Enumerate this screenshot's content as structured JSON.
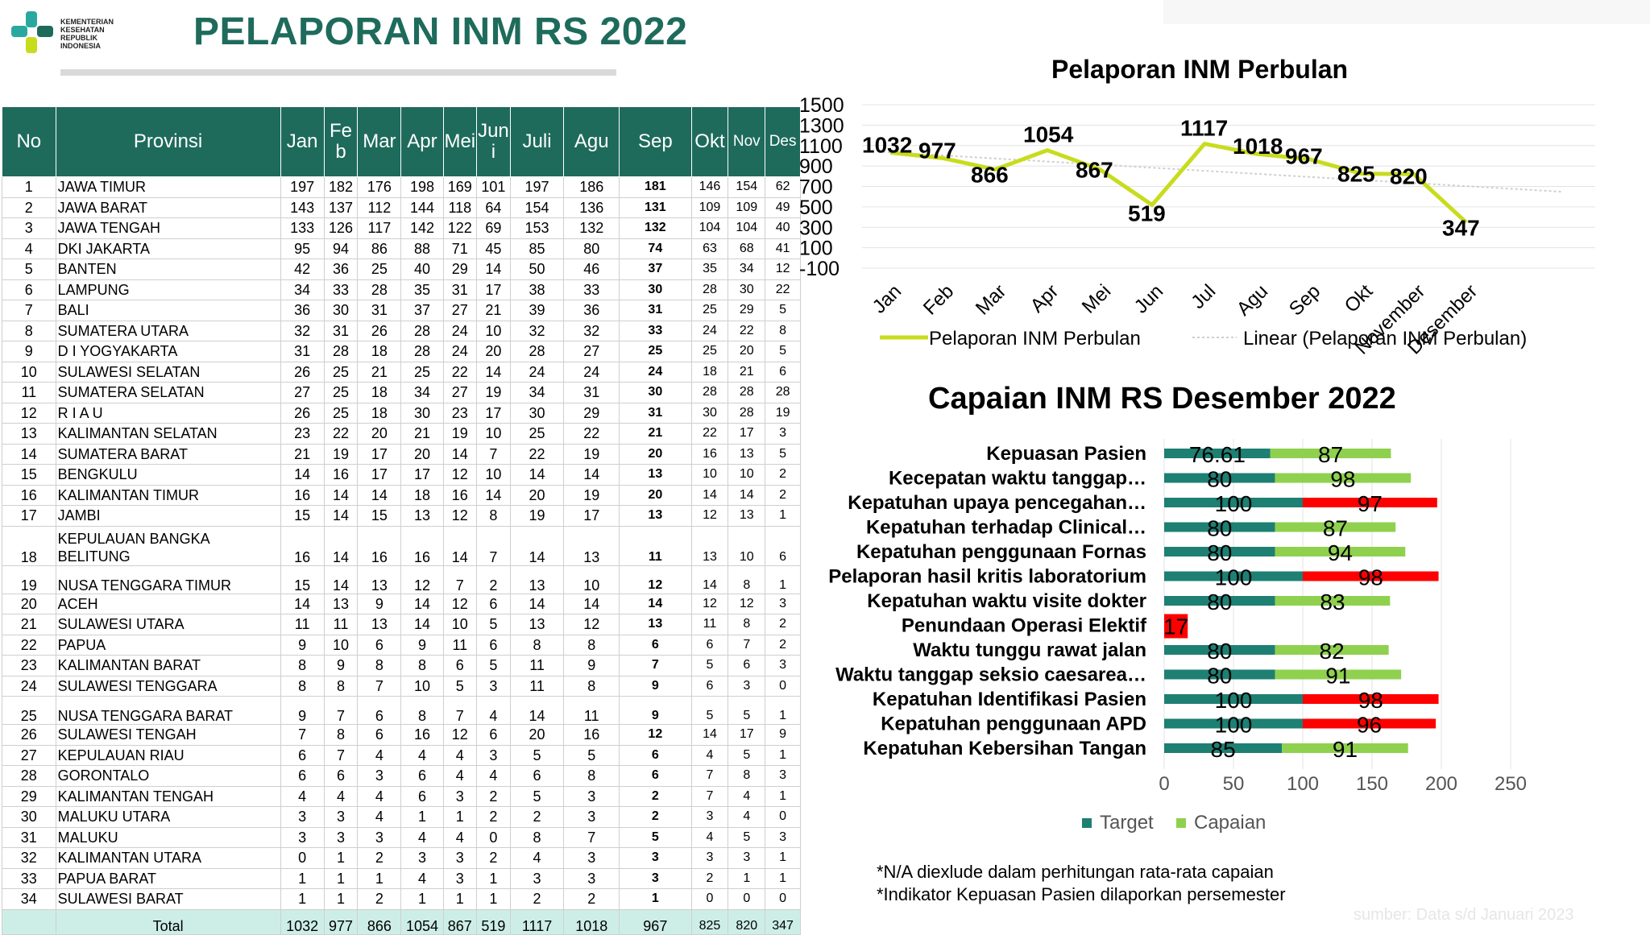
{
  "header": {
    "logo_text": "KEMENTERIAN\nKESEHATAN\nREPUBLIK\nINDONESIA",
    "title": "PELAPORAN INM RS 2022"
  },
  "table": {
    "columns": [
      "No",
      "Provinsi",
      "Jan",
      "Fe b",
      "Mar",
      "Apr",
      "Mei",
      "Jun i",
      "Juli",
      "Agu",
      "Sep",
      "Okt",
      "Nov",
      "Des"
    ],
    "rows": [
      [
        "1",
        "JAWA TIMUR",
        "197",
        "182",
        "176",
        "198",
        "169",
        "101",
        "197",
        "186",
        "181",
        "146",
        "154",
        "62"
      ],
      [
        "2",
        "JAWA BARAT",
        "143",
        "137",
        "112",
        "144",
        "118",
        "64",
        "154",
        "136",
        "131",
        "109",
        "109",
        "49"
      ],
      [
        "3",
        "JAWA TENGAH",
        "133",
        "126",
        "117",
        "142",
        "122",
        "69",
        "153",
        "132",
        "132",
        "104",
        "104",
        "40"
      ],
      [
        "4",
        "DKI JAKARTA",
        "95",
        "94",
        "86",
        "88",
        "71",
        "45",
        "85",
        "80",
        "74",
        "63",
        "68",
        "41"
      ],
      [
        "5",
        "BANTEN",
        "42",
        "36",
        "25",
        "40",
        "29",
        "14",
        "50",
        "46",
        "37",
        "35",
        "34",
        "12"
      ],
      [
        "6",
        "LAMPUNG",
        "34",
        "33",
        "28",
        "35",
        "31",
        "17",
        "38",
        "33",
        "30",
        "28",
        "30",
        "22"
      ],
      [
        "7",
        "BALI",
        "36",
        "30",
        "31",
        "37",
        "27",
        "21",
        "39",
        "36",
        "31",
        "25",
        "29",
        "5"
      ],
      [
        "8",
        "SUMATERA UTARA",
        "32",
        "31",
        "26",
        "28",
        "24",
        "10",
        "32",
        "32",
        "33",
        "24",
        "22",
        "8"
      ],
      [
        "9",
        "D I YOGYAKARTA",
        "31",
        "28",
        "18",
        "28",
        "24",
        "20",
        "28",
        "27",
        "25",
        "25",
        "20",
        "5"
      ],
      [
        "10",
        "SULAWESI SELATAN",
        "26",
        "25",
        "21",
        "25",
        "22",
        "14",
        "24",
        "24",
        "24",
        "18",
        "21",
        "6"
      ],
      [
        "11",
        "SUMATERA SELATAN",
        "27",
        "25",
        "18",
        "34",
        "27",
        "19",
        "34",
        "31",
        "30",
        "28",
        "28",
        "28"
      ],
      [
        "12",
        "R I A U",
        "26",
        "25",
        "18",
        "30",
        "23",
        "17",
        "30",
        "29",
        "31",
        "30",
        "28",
        "19"
      ],
      [
        "13",
        "KALIMANTAN SELATAN",
        "23",
        "22",
        "20",
        "21",
        "19",
        "10",
        "25",
        "22",
        "21",
        "22",
        "17",
        "3"
      ],
      [
        "14",
        "SUMATERA BARAT",
        "21",
        "19",
        "17",
        "20",
        "14",
        "7",
        "22",
        "19",
        "20",
        "16",
        "13",
        "5"
      ],
      [
        "15",
        "BENGKULU",
        "14",
        "16",
        "17",
        "17",
        "12",
        "10",
        "14",
        "14",
        "13",
        "10",
        "10",
        "2"
      ],
      [
        "16",
        "KALIMANTAN TIMUR",
        "16",
        "14",
        "14",
        "18",
        "16",
        "14",
        "20",
        "19",
        "20",
        "14",
        "14",
        "2"
      ],
      [
        "17",
        "JAMBI",
        "15",
        "14",
        "15",
        "13",
        "12",
        "8",
        "19",
        "17",
        "13",
        "12",
        "13",
        "1"
      ],
      [
        "18",
        "KEPULAUAN BANGKA BELITUNG",
        "16",
        "14",
        "16",
        "16",
        "14",
        "7",
        "14",
        "13",
        "11",
        "13",
        "10",
        "6"
      ],
      [
        "19",
        "NUSA TENGGARA TIMUR",
        "15",
        "14",
        "13",
        "12",
        "7",
        "2",
        "13",
        "10",
        "12",
        "14",
        "8",
        "1"
      ],
      [
        "20",
        "ACEH",
        "14",
        "13",
        "9",
        "14",
        "12",
        "6",
        "14",
        "14",
        "14",
        "12",
        "12",
        "3"
      ],
      [
        "21",
        "SULAWESI UTARA",
        "11",
        "11",
        "13",
        "14",
        "10",
        "5",
        "13",
        "12",
        "13",
        "11",
        "8",
        "2"
      ],
      [
        "22",
        "PAPUA",
        "9",
        "10",
        "6",
        "9",
        "11",
        "6",
        "8",
        "8",
        "6",
        "6",
        "7",
        "2"
      ],
      [
        "23",
        "KALIMANTAN BARAT",
        "8",
        "9",
        "8",
        "8",
        "6",
        "5",
        "11",
        "9",
        "7",
        "5",
        "6",
        "3"
      ],
      [
        "24",
        "SULAWESI TENGGARA",
        "8",
        "8",
        "7",
        "10",
        "5",
        "3",
        "11",
        "8",
        "9",
        "6",
        "3",
        "0"
      ],
      [
        "25",
        "NUSA TENGGARA BARAT",
        "9",
        "7",
        "6",
        "8",
        "7",
        "4",
        "14",
        "11",
        "9",
        "5",
        "5",
        "1"
      ],
      [
        "26",
        "SULAWESI TENGAH",
        "7",
        "8",
        "6",
        "16",
        "12",
        "6",
        "20",
        "16",
        "12",
        "14",
        "17",
        "9"
      ],
      [
        "27",
        "KEPULAUAN RIAU",
        "6",
        "7",
        "4",
        "4",
        "4",
        "3",
        "5",
        "5",
        "6",
        "4",
        "5",
        "1"
      ],
      [
        "28",
        "GORONTALO",
        "6",
        "6",
        "3",
        "6",
        "4",
        "4",
        "6",
        "8",
        "6",
        "7",
        "8",
        "3"
      ],
      [
        "29",
        "KALIMANTAN TENGAH",
        "4",
        "4",
        "4",
        "6",
        "3",
        "2",
        "5",
        "3",
        "2",
        "7",
        "4",
        "1"
      ],
      [
        "30",
        "MALUKU UTARA",
        "3",
        "3",
        "4",
        "1",
        "1",
        "2",
        "2",
        "3",
        "2",
        "3",
        "4",
        "0"
      ],
      [
        "31",
        "MALUKU",
        "3",
        "3",
        "3",
        "4",
        "4",
        "0",
        "8",
        "7",
        "5",
        "4",
        "5",
        "3"
      ],
      [
        "32",
        "KALIMANTAN UTARA",
        "0",
        "1",
        "2",
        "3",
        "3",
        "2",
        "4",
        "3",
        "3",
        "3",
        "3",
        "1"
      ],
      [
        "33",
        "PAPUA BARAT",
        "1",
        "1",
        "1",
        "4",
        "3",
        "1",
        "3",
        "3",
        "3",
        "2",
        "1",
        "1"
      ],
      [
        "34",
        "SULAWESI BARAT",
        "1",
        "1",
        "2",
        "1",
        "1",
        "1",
        "2",
        "2",
        "1",
        "0",
        "0",
        "0"
      ]
    ],
    "total": [
      "",
      "Total",
      "1032",
      "977",
      "866",
      "1054",
      "867",
      "519",
      "1117",
      "1018",
      "967",
      "825",
      "820",
      "347"
    ]
  },
  "chart_data": [
    {
      "type": "line",
      "title": "Pelaporan INM Perbulan",
      "categories": [
        "Jan",
        "Feb",
        "Mar",
        "Apr",
        "Mei",
        "Jun",
        "Jul",
        "Agu",
        "Sep",
        "Okt",
        "November",
        "Desember"
      ],
      "series": [
        {
          "name": "Pelaporan INM Perbulan",
          "values": [
            1032,
            977,
            866,
            1054,
            867,
            519,
            1117,
            1018,
            967,
            825,
            820,
            347
          ],
          "color": "#c8dc1e"
        },
        {
          "name": "Linear (Pelaporan INM Perbulan)",
          "trendline": true,
          "color": "#cfcfcf"
        }
      ],
      "yticks": [
        "1500",
        "1300",
        "1100",
        "900",
        "700",
        "500",
        "300",
        "100",
        "-100"
      ],
      "ylim": [
        -100,
        1500
      ],
      "grid": true,
      "legend": "bottom"
    },
    {
      "type": "bar",
      "orientation": "horizontal",
      "stacked": true,
      "title": "Capaian INM RS Desember 2022",
      "categories": [
        "Kepuasan Pasien",
        "Kecepatan waktu tanggap…",
        "Kepatuhan upaya pencegahan…",
        "Kepatuhan terhadap Clinical…",
        "Kepatuhan penggunaan Fornas",
        "Pelaporan hasil kritis laboratorium",
        "Kepatuhan waktu visite dokter",
        "Penundaan Operasi Elektif",
        "Waktu tunggu rawat jalan",
        "Waktu tanggap seksio caesarea…",
        "Kepatuhan Identifikasi Pasien",
        "Kepatuhan penggunaan APD",
        "Kepatuhan Kebersihan Tangan"
      ],
      "series": [
        {
          "name": "Target",
          "values": [
            76.61,
            80,
            100,
            80,
            80,
            100,
            80,
            null,
            80,
            80,
            100,
            100,
            85
          ],
          "labels": [
            "76.61",
            "80",
            "100",
            "80",
            "80",
            "100",
            "80",
            "",
            "80",
            "80",
            "100",
            "100",
            "85"
          ],
          "color": "#1e7f73"
        },
        {
          "name": "Capaian",
          "values": [
            87,
            98,
            97,
            87,
            94,
            98,
            83,
            17,
            82,
            91,
            98,
            96,
            91
          ],
          "labels": [
            "87",
            "98",
            "97",
            "87",
            "94",
            "98",
            "83",
            "17",
            "82",
            "91",
            "98",
            "96",
            "91"
          ],
          "color": "#8fd14f",
          "highlight_color": "#ff0000",
          "highlighted": [
            false,
            false,
            true,
            false,
            false,
            true,
            false,
            true,
            false,
            false,
            true,
            true,
            false
          ]
        }
      ],
      "xticks": [
        "0",
        "50",
        "100",
        "150",
        "200",
        "250"
      ],
      "xlim": [
        0,
        250
      ],
      "legend": "bottom"
    }
  ],
  "notes": [
    "*N/A diexlude dalam perhitungan rata-rata capaian",
    "*Indikator Kepuasan Pasien dilaporkan persemester"
  ],
  "watermark": "sumber: Data s/d Januari 2023"
}
